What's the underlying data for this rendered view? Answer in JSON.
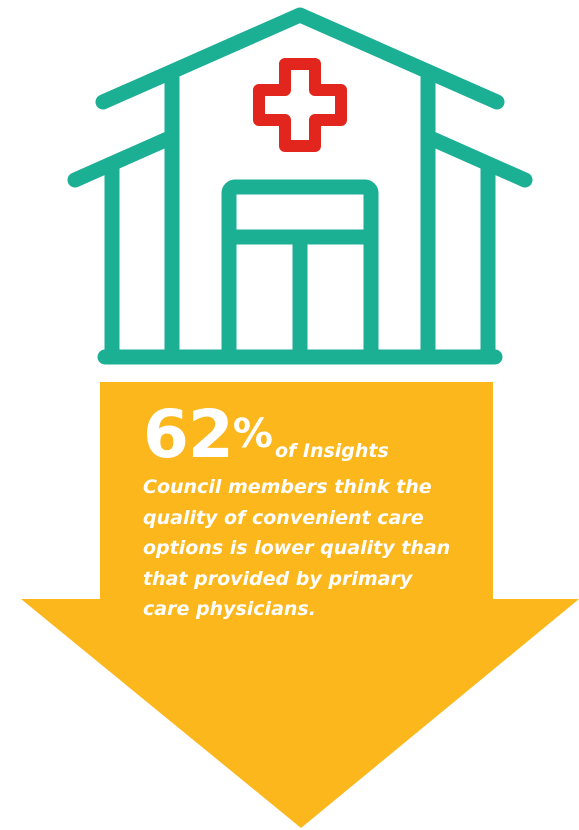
{
  "colors": {
    "building": "#1baf94",
    "cross": "#e2261d",
    "arrow": "#fbb71c",
    "text": "#ffffff"
  },
  "icons": {
    "building": "hospital-building-icon",
    "cross": "medical-cross-icon",
    "arrow": "down-arrow-shape"
  },
  "stat": {
    "number": "62",
    "percent_sign": "%",
    "lead": "of Insights",
    "body": "Council members think the\nquality of convenient care\noptions is lower quality than\nthat provided by primary\ncare physicians."
  }
}
